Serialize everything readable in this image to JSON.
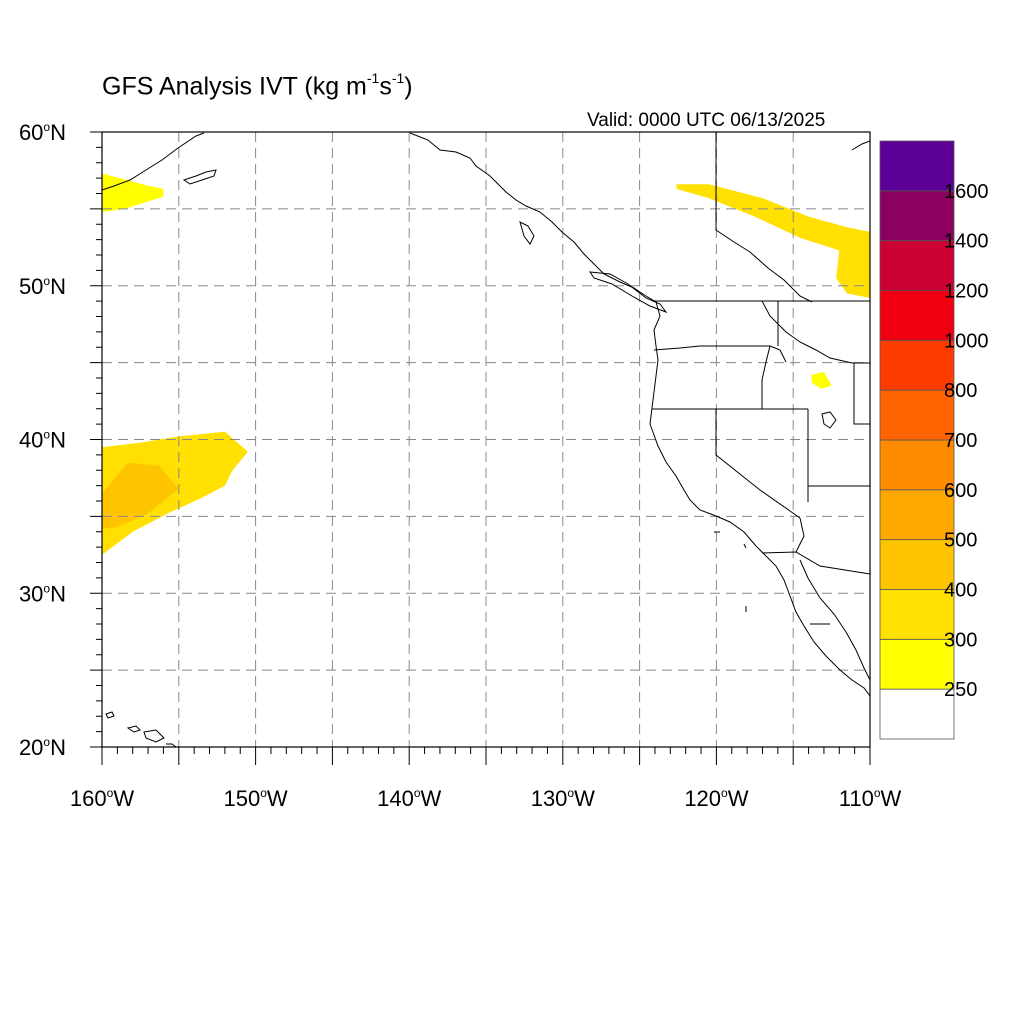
{
  "title": {
    "text": "GFS Analysis IVT (kg m",
    "exp1": "-1",
    "mid": "s",
    "exp2": "-1",
    "close": ")"
  },
  "valid_label": "Valid: 0000 UTC 06/13/2025",
  "map": {
    "lon_range": [
      -160,
      -110
    ],
    "lat_range": [
      20,
      60
    ],
    "grid": "dashed every 5 degrees",
    "lat_ticks": [
      {
        "value": 20,
        "num": "20",
        "hemi": "N"
      },
      {
        "value": 30,
        "num": "30",
        "hemi": "N"
      },
      {
        "value": 40,
        "num": "40",
        "hemi": "N"
      },
      {
        "value": 50,
        "num": "50",
        "hemi": "N"
      },
      {
        "value": 60,
        "num": "60",
        "hemi": "N"
      }
    ],
    "lon_ticks": [
      {
        "value": -160,
        "num": "160",
        "hemi": "W"
      },
      {
        "value": -150,
        "num": "150",
        "hemi": "W"
      },
      {
        "value": -140,
        "num": "140",
        "hemi": "W"
      },
      {
        "value": -130,
        "num": "130",
        "hemi": "W"
      },
      {
        "value": -120,
        "num": "120",
        "hemi": "W"
      },
      {
        "value": -110,
        "num": "110",
        "hemi": "W"
      }
    ]
  },
  "colorbar": {
    "colors": [
      "#ffffff",
      "#ffff00",
      "#ffe000",
      "#ffc400",
      "#ffa800",
      "#ff8c00",
      "#ff6400",
      "#ff3c00",
      "#ee0010",
      "#cc0033",
      "#8c0060",
      "#5c0098"
    ],
    "labels": [
      "250",
      "300",
      "400",
      "500",
      "600",
      "700",
      "800",
      "1000",
      "1200",
      "1400",
      "1600"
    ]
  },
  "ivt_regions": [
    {
      "name": "subtropical-plume",
      "level": 300,
      "color": "#ffe000",
      "polygon": [
        [
          -160,
          39.5
        ],
        [
          -157.5,
          39.8
        ],
        [
          -155,
          40.2
        ],
        [
          -152,
          40.5
        ],
        [
          -150.5,
          39.2
        ],
        [
          -151.5,
          38
        ],
        [
          -152,
          37
        ],
        [
          -153.5,
          36.2
        ],
        [
          -155.5,
          35.3
        ],
        [
          -158,
          34
        ],
        [
          -160,
          32.5
        ]
      ]
    },
    {
      "name": "subtropical-plume-core",
      "level": 400,
      "color": "#ffc400",
      "polygon": [
        [
          -160,
          36.5
        ],
        [
          -158.3,
          38.5
        ],
        [
          -156.3,
          38.3
        ],
        [
          -155,
          36.8
        ],
        [
          -157,
          35.2
        ],
        [
          -159,
          34.3
        ],
        [
          -160,
          34.2
        ]
      ]
    },
    {
      "name": "alaska-moisture",
      "level": 250,
      "color": "#ffff00",
      "polygon": [
        [
          -160,
          57.3
        ],
        [
          -157,
          56.5
        ],
        [
          -156,
          56.3
        ],
        [
          -156,
          55.8
        ],
        [
          -158.5,
          55
        ],
        [
          -160,
          54.8
        ]
      ]
    },
    {
      "name": "canada-band",
      "level": 300,
      "color": "#ffe000",
      "polygon": [
        [
          -122.6,
          56.6
        ],
        [
          -120.5,
          56.6
        ],
        [
          -117,
          55.7
        ],
        [
          -114,
          54.5
        ],
        [
          -111.5,
          53.8
        ],
        [
          -110,
          53.5
        ],
        [
          -110,
          49.2
        ],
        [
          -111.5,
          49.5
        ],
        [
          -112.2,
          50.5
        ],
        [
          -112,
          52.3
        ],
        [
          -114.5,
          53.1
        ],
        [
          -117.5,
          54.5
        ],
        [
          -120.5,
          55.7
        ],
        [
          -122.6,
          56.3
        ]
      ]
    },
    {
      "name": "idaho-spots",
      "level": 250,
      "color": "#ffff00",
      "polygon": [
        [
          -113.8,
          44.2
        ],
        [
          -113,
          44.4
        ],
        [
          -112.5,
          43.5
        ],
        [
          -113.2,
          43.3
        ],
        [
          -113.8,
          43.7
        ]
      ]
    }
  ]
}
